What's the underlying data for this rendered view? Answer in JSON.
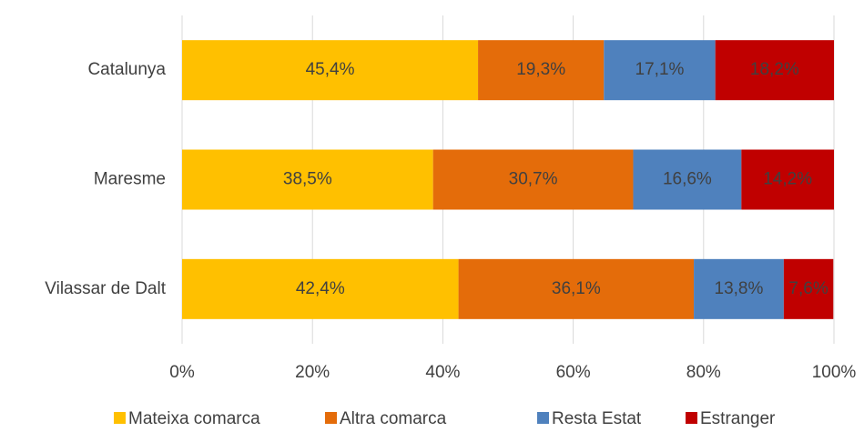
{
  "chart_data": {
    "type": "bar",
    "orientation": "horizontal",
    "stacked": true,
    "categories": [
      "Catalunya",
      "Maresme",
      "Vilassar de Dalt"
    ],
    "series": [
      {
        "name": "Mateixa comarca",
        "color": "#FFC000",
        "values": [
          45.4,
          38.5,
          42.4
        ],
        "value_labels": [
          "45,4%",
          "38,5%",
          "42,4%"
        ]
      },
      {
        "name": "Altra comarca",
        "color": "#E46C0A",
        "values": [
          19.3,
          30.7,
          36.1
        ],
        "value_labels": [
          "19,3%",
          "30,7%",
          "36,1%"
        ]
      },
      {
        "name": "Resta Estat",
        "color": "#4F81BD",
        "values": [
          17.1,
          16.6,
          13.8
        ],
        "value_labels": [
          "17,1%",
          "16,6%",
          "13,8%"
        ]
      },
      {
        "name": "Estranger",
        "color": "#C00000",
        "values": [
          18.2,
          14.2,
          7.6
        ],
        "value_labels": [
          "18,2%",
          "14,2%",
          "7,6%"
        ]
      }
    ],
    "xlim": [
      0,
      100
    ],
    "xticks": [
      {
        "value": 0,
        "label": "0%"
      },
      {
        "value": 20,
        "label": "20%"
      },
      {
        "value": 40,
        "label": "40%"
      },
      {
        "value": 60,
        "label": "60%"
      },
      {
        "value": 80,
        "label": "80%"
      },
      {
        "value": 100,
        "label": "100%"
      }
    ],
    "grid": true,
    "legend": "bottom"
  }
}
